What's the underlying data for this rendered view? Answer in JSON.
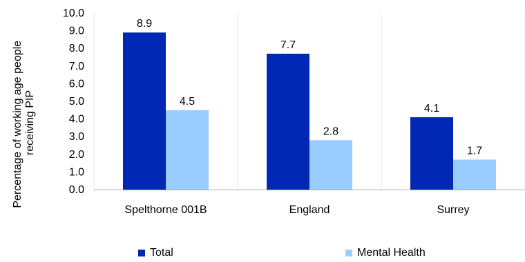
{
  "chart_data": {
    "type": "bar",
    "categories": [
      "Spelthorne 001B",
      "England",
      "Surrey"
    ],
    "series": [
      {
        "name": "Total",
        "values": [
          8.9,
          7.7,
          4.1
        ],
        "color": "#0028B4"
      },
      {
        "name": "Mental Health",
        "values": [
          4.5,
          2.8,
          1.7
        ],
        "color": "#99CCFF"
      }
    ],
    "ylabel_lines": [
      "Percentage of working age people",
      "receiving PIP"
    ],
    "ylim": [
      0,
      10
    ],
    "yticks": [
      "0.0",
      "1.0",
      "2.0",
      "3.0",
      "4.0",
      "5.0",
      "6.0",
      "7.0",
      "8.0",
      "9.0",
      "10.0"
    ],
    "grid": true,
    "legend_position": "bottom"
  }
}
